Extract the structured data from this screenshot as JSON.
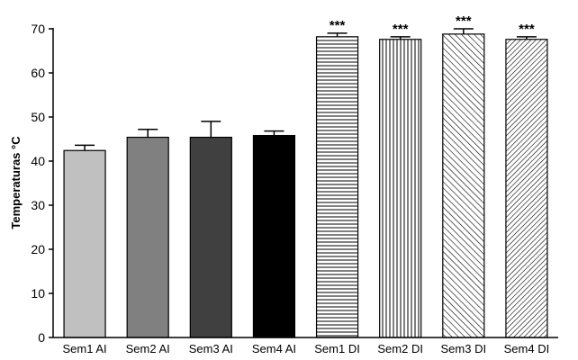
{
  "chart_data": {
    "type": "bar",
    "title": "",
    "xlabel": "",
    "ylabel": "Temperaturas °C",
    "ylim": [
      0,
      70
    ],
    "yticks": [
      0,
      10,
      20,
      30,
      40,
      50,
      60,
      70
    ],
    "grid": false,
    "legend": "none",
    "categories": [
      "Sem1 AI",
      "Sem2 AI",
      "Sem3 AI",
      "Sem4 AI",
      "Sem1 DI",
      "Sem2 DI",
      "Sem3 DI",
      "Sem4 DI"
    ],
    "values": [
      42.4,
      45.4,
      45.4,
      45.8,
      68.2,
      67.6,
      68.8,
      67.6
    ],
    "error_upper": [
      1.2,
      1.8,
      3.6,
      1.0,
      0.8,
      0.6,
      1.2,
      0.6
    ],
    "significance": [
      "",
      "",
      "",
      "",
      "***",
      "***",
      "***",
      "***"
    ],
    "fills": [
      {
        "color": "#c0c0c0",
        "pattern": "solid"
      },
      {
        "color": "#808080",
        "pattern": "solid"
      },
      {
        "color": "#404040",
        "pattern": "solid"
      },
      {
        "color": "#000000",
        "pattern": "solid"
      },
      {
        "color": "#ffffff",
        "pattern": "horizontal-lines"
      },
      {
        "color": "#ffffff",
        "pattern": "vertical-lines"
      },
      {
        "color": "#ffffff",
        "pattern": "diagonal-lines-wide"
      },
      {
        "color": "#ffffff",
        "pattern": "diagonal-lines-dense"
      }
    ]
  }
}
